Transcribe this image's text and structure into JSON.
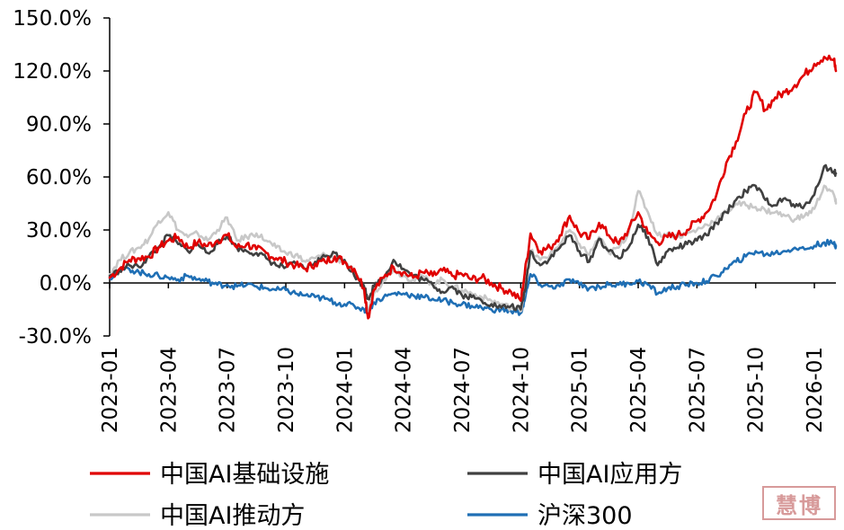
{
  "chart_data": {
    "type": "line",
    "title": "",
    "xlabel": "",
    "ylabel": "",
    "ylim": [
      -30,
      150
    ],
    "y_ticks": [
      "150.0%",
      "120.0%",
      "90.0%",
      "60.0%",
      "30.0%",
      "0.0%",
      "-30.0%"
    ],
    "y_tick_values": [
      150,
      120,
      90,
      60,
      30,
      0,
      -30
    ],
    "x_ticks": [
      "2023-01",
      "2023-04",
      "2023-07",
      "2023-10",
      "2024-01",
      "2024-04",
      "2024-07",
      "2024-10",
      "2025-01",
      "2025-04",
      "2025-07",
      "2025-10",
      "2026-01"
    ],
    "x_tick_index": [
      0,
      3,
      6,
      9,
      12,
      15,
      18,
      21,
      24,
      27,
      30,
      33,
      36
    ],
    "x_max": 37.1,
    "legend": {
      "placement": "bottom"
    },
    "series": [
      {
        "name": "中国AI基础设施",
        "color": "#e00000",
        "points": [
          [
            0,
            3
          ],
          [
            0.5,
            8
          ],
          [
            1,
            13
          ],
          [
            1.5,
            14
          ],
          [
            2,
            15
          ],
          [
            2.5,
            20
          ],
          [
            3,
            24
          ],
          [
            3.5,
            26
          ],
          [
            4,
            20
          ],
          [
            4.5,
            23
          ],
          [
            5,
            21
          ],
          [
            5.5,
            24
          ],
          [
            6,
            27
          ],
          [
            6.5,
            20
          ],
          [
            7,
            22
          ],
          [
            7.5,
            19
          ],
          [
            8,
            17
          ],
          [
            8.5,
            14
          ],
          [
            9,
            12
          ],
          [
            9.5,
            10
          ],
          [
            10,
            8
          ],
          [
            10.5,
            11
          ],
          [
            11,
            12
          ],
          [
            11.5,
            15
          ],
          [
            12,
            12
          ],
          [
            12.5,
            8
          ],
          [
            13,
            -3
          ],
          [
            13.2,
            -20
          ],
          [
            13.5,
            -4
          ],
          [
            14,
            3
          ],
          [
            14.5,
            9
          ],
          [
            15,
            6
          ],
          [
            15.5,
            3
          ],
          [
            16,
            6
          ],
          [
            16.5,
            4
          ],
          [
            17,
            7
          ],
          [
            17.5,
            4
          ],
          [
            18,
            5
          ],
          [
            18.5,
            2
          ],
          [
            19,
            3
          ],
          [
            19.5,
            0
          ],
          [
            20,
            -3
          ],
          [
            20.5,
            -5
          ],
          [
            21,
            -10
          ],
          [
            21.2,
            5
          ],
          [
            21.5,
            28
          ],
          [
            22,
            18
          ],
          [
            22.5,
            20
          ],
          [
            23,
            27
          ],
          [
            23.5,
            38
          ],
          [
            24,
            28
          ],
          [
            24.5,
            25
          ],
          [
            25,
            34
          ],
          [
            25.5,
            27
          ],
          [
            26,
            22
          ],
          [
            26.5,
            30
          ],
          [
            27,
            40
          ],
          [
            27.5,
            28
          ],
          [
            28,
            23
          ],
          [
            28.5,
            26
          ],
          [
            29,
            27
          ],
          [
            29.5,
            30
          ],
          [
            30,
            35
          ],
          [
            30.5,
            40
          ],
          [
            31,
            50
          ],
          [
            31.5,
            68
          ],
          [
            32,
            80
          ],
          [
            32.5,
            96
          ],
          [
            33,
            108
          ],
          [
            33.5,
            98
          ],
          [
            34,
            105
          ],
          [
            34.5,
            108
          ],
          [
            35,
            112
          ],
          [
            35.5,
            118
          ],
          [
            36,
            124
          ],
          [
            36.5,
            128
          ],
          [
            37,
            126
          ],
          [
            37.1,
            120
          ]
        ]
      },
      {
        "name": "中国AI推动方",
        "color": "#c8c8c8",
        "points": [
          [
            0,
            5
          ],
          [
            0.5,
            13
          ],
          [
            1,
            17
          ],
          [
            1.5,
            20
          ],
          [
            2,
            25
          ],
          [
            2.5,
            35
          ],
          [
            3,
            40
          ],
          [
            3.5,
            30
          ],
          [
            4,
            26
          ],
          [
            4.5,
            28
          ],
          [
            5,
            24
          ],
          [
            5.5,
            30
          ],
          [
            6,
            37
          ],
          [
            6.5,
            24
          ],
          [
            7,
            26
          ],
          [
            7.5,
            28
          ],
          [
            8,
            24
          ],
          [
            8.5,
            20
          ],
          [
            9,
            17
          ],
          [
            9.5,
            16
          ],
          [
            10,
            12
          ],
          [
            10.5,
            14
          ],
          [
            11,
            16
          ],
          [
            11.5,
            14
          ],
          [
            12,
            12
          ],
          [
            12.5,
            6
          ],
          [
            13,
            -5
          ],
          [
            13.2,
            -16
          ],
          [
            13.5,
            -6
          ],
          [
            14,
            2
          ],
          [
            14.5,
            8
          ],
          [
            15,
            4
          ],
          [
            15.5,
            2
          ],
          [
            16,
            4
          ],
          [
            16.5,
            -1
          ],
          [
            17,
            2
          ],
          [
            17.5,
            -2
          ],
          [
            18,
            -4
          ],
          [
            18.5,
            -6
          ],
          [
            19,
            -8
          ],
          [
            19.5,
            -10
          ],
          [
            20,
            -12
          ],
          [
            20.5,
            -14
          ],
          [
            21,
            -16
          ],
          [
            21.2,
            -4
          ],
          [
            21.5,
            18
          ],
          [
            22,
            13
          ],
          [
            22.5,
            16
          ],
          [
            23,
            22
          ],
          [
            23.5,
            30
          ],
          [
            24,
            22
          ],
          [
            24.5,
            16
          ],
          [
            25,
            26
          ],
          [
            25.5,
            17
          ],
          [
            26,
            20
          ],
          [
            26.5,
            28
          ],
          [
            27,
            52
          ],
          [
            27.5,
            40
          ],
          [
            28,
            27
          ],
          [
            28.5,
            28
          ],
          [
            29,
            26
          ],
          [
            29.5,
            28
          ],
          [
            30,
            30
          ],
          [
            30.5,
            33
          ],
          [
            31,
            36
          ],
          [
            31.5,
            40
          ],
          [
            32,
            45
          ],
          [
            32.5,
            44
          ],
          [
            33,
            43
          ],
          [
            33.5,
            41
          ],
          [
            34,
            40
          ],
          [
            34.5,
            38
          ],
          [
            35,
            36
          ],
          [
            35.5,
            38
          ],
          [
            36,
            42
          ],
          [
            36.5,
            55
          ],
          [
            37,
            50
          ],
          [
            37.1,
            45
          ]
        ]
      },
      {
        "name": "中国AI应用方",
        "color": "#404040",
        "points": [
          [
            0,
            4
          ],
          [
            0.5,
            7
          ],
          [
            1,
            10
          ],
          [
            1.5,
            9
          ],
          [
            2,
            15
          ],
          [
            2.5,
            20
          ],
          [
            3,
            27
          ],
          [
            3.5,
            22
          ],
          [
            4,
            18
          ],
          [
            4.5,
            22
          ],
          [
            5,
            17
          ],
          [
            5.5,
            22
          ],
          [
            6,
            27
          ],
          [
            6.5,
            20
          ],
          [
            7,
            18
          ],
          [
            7.5,
            17
          ],
          [
            8,
            14
          ],
          [
            8.5,
            10
          ],
          [
            9,
            9
          ],
          [
            9.5,
            11
          ],
          [
            10,
            8
          ],
          [
            10.5,
            12
          ],
          [
            11,
            15
          ],
          [
            11.5,
            17
          ],
          [
            12,
            13
          ],
          [
            12.5,
            4
          ],
          [
            13,
            -2
          ],
          [
            13.2,
            -9
          ],
          [
            13.5,
            -2
          ],
          [
            14,
            3
          ],
          [
            14.5,
            13
          ],
          [
            15,
            8
          ],
          [
            15.5,
            4
          ],
          [
            16,
            2
          ],
          [
            16.5,
            -1
          ],
          [
            17,
            -5
          ],
          [
            17.5,
            -2
          ],
          [
            18,
            -7
          ],
          [
            18.5,
            -8
          ],
          [
            19,
            -10
          ],
          [
            19.5,
            -12
          ],
          [
            20,
            -14
          ],
          [
            20.5,
            -13
          ],
          [
            21,
            -15
          ],
          [
            21.2,
            -5
          ],
          [
            21.5,
            18
          ],
          [
            22,
            10
          ],
          [
            22.5,
            14
          ],
          [
            23,
            20
          ],
          [
            23.5,
            27
          ],
          [
            24,
            18
          ],
          [
            24.5,
            12
          ],
          [
            25,
            25
          ],
          [
            25.5,
            18
          ],
          [
            26,
            14
          ],
          [
            26.5,
            20
          ],
          [
            27,
            33
          ],
          [
            27.5,
            26
          ],
          [
            28,
            10
          ],
          [
            28.5,
            18
          ],
          [
            29,
            20
          ],
          [
            29.5,
            22
          ],
          [
            30,
            24
          ],
          [
            30.5,
            27
          ],
          [
            31,
            34
          ],
          [
            31.5,
            40
          ],
          [
            32,
            47
          ],
          [
            32.5,
            52
          ],
          [
            33,
            55
          ],
          [
            33.5,
            47
          ],
          [
            34,
            44
          ],
          [
            34.5,
            48
          ],
          [
            35,
            43
          ],
          [
            35.5,
            44
          ],
          [
            36,
            50
          ],
          [
            36.5,
            66
          ],
          [
            37,
            63
          ],
          [
            37.1,
            62
          ]
        ]
      },
      {
        "name": "沪深300",
        "color": "#1f6fb5",
        "points": [
          [
            0,
            3
          ],
          [
            0.5,
            7
          ],
          [
            1,
            8
          ],
          [
            1.5,
            6
          ],
          [
            2,
            5
          ],
          [
            2.5,
            4
          ],
          [
            3,
            3
          ],
          [
            3.5,
            2
          ],
          [
            4,
            4
          ],
          [
            4.5,
            2
          ],
          [
            5,
            1
          ],
          [
            5.5,
            -1
          ],
          [
            6,
            -1
          ],
          [
            6.5,
            -2
          ],
          [
            7,
            -1
          ],
          [
            7.5,
            -2
          ],
          [
            8,
            -3
          ],
          [
            8.5,
            -4
          ],
          [
            9,
            -4
          ],
          [
            9.5,
            -6
          ],
          [
            10,
            -7
          ],
          [
            10.5,
            -8
          ],
          [
            11,
            -9
          ],
          [
            11.5,
            -11
          ],
          [
            12,
            -12
          ],
          [
            12.5,
            -13
          ],
          [
            13,
            -15
          ],
          [
            13.2,
            -16
          ],
          [
            13.5,
            -11
          ],
          [
            14,
            -8
          ],
          [
            14.5,
            -6
          ],
          [
            15,
            -6
          ],
          [
            15.5,
            -7
          ],
          [
            16,
            -8
          ],
          [
            16.5,
            -9
          ],
          [
            17,
            -10
          ],
          [
            17.5,
            -11
          ],
          [
            18,
            -12
          ],
          [
            18.5,
            -13
          ],
          [
            19,
            -14
          ],
          [
            19.5,
            -15
          ],
          [
            20,
            -15
          ],
          [
            20.5,
            -16
          ],
          [
            21,
            -17
          ],
          [
            21.2,
            -10
          ],
          [
            21.5,
            5
          ],
          [
            22,
            -1
          ],
          [
            22.5,
            -2
          ],
          [
            23,
            -2
          ],
          [
            23.5,
            2
          ],
          [
            24,
            -1
          ],
          [
            24.5,
            -3
          ],
          [
            25,
            -2
          ],
          [
            25.5,
            -1
          ],
          [
            26,
            -1
          ],
          [
            26.5,
            0
          ],
          [
            27,
            1
          ],
          [
            27.5,
            -1
          ],
          [
            28,
            -6
          ],
          [
            28.5,
            -3
          ],
          [
            29,
            -2
          ],
          [
            29.5,
            -1
          ],
          [
            30,
            0
          ],
          [
            30.5,
            1
          ],
          [
            31,
            4
          ],
          [
            31.5,
            8
          ],
          [
            32,
            12
          ],
          [
            32.5,
            15
          ],
          [
            33,
            18
          ],
          [
            33.5,
            16
          ],
          [
            34,
            17
          ],
          [
            34.5,
            18
          ],
          [
            35,
            20
          ],
          [
            35.5,
            19
          ],
          [
            36,
            21
          ],
          [
            36.5,
            23
          ],
          [
            37,
            22
          ],
          [
            37.1,
            21
          ]
        ]
      }
    ]
  },
  "watermark": "慧博"
}
